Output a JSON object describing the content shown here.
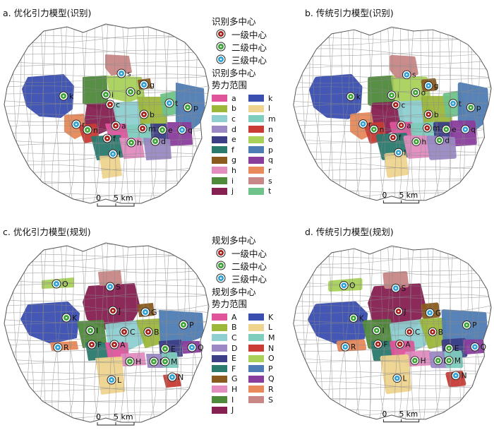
{
  "panels": [
    {
      "title": "a. 优化引力模型(识别)",
      "labels": [
        "k",
        "i",
        "o",
        "s",
        "g",
        "c",
        "b",
        "t",
        "p",
        "r",
        "n",
        "a",
        "m",
        "e",
        "q",
        "f",
        "h",
        "d",
        "l"
      ]
    },
    {
      "title": "b. 传统引力模型(识别)",
      "labels": [
        "k",
        "i",
        "o",
        "s",
        "g",
        "c",
        "b",
        "t",
        "p",
        "r",
        "n",
        "a",
        "m",
        "e",
        "q",
        "f",
        "h",
        "d",
        "l"
      ]
    },
    {
      "title": "c. 优化引力模型(规划)",
      "labels": [
        "O",
        "K",
        "S",
        "J",
        "G",
        "I",
        "C",
        "B",
        "P",
        "R",
        "F",
        "A",
        "E",
        "Q",
        "H",
        "D",
        "M",
        "L",
        "N"
      ]
    },
    {
      "title": "d. 传统引力模型(规划)",
      "labels": [
        "O",
        "K",
        "S",
        "J",
        "G",
        "I",
        "C",
        "B",
        "P",
        "R",
        "F",
        "A",
        "E",
        "Q",
        "H",
        "D",
        "M",
        "L",
        "N"
      ]
    }
  ],
  "scalebar": {
    "zero": "0",
    "five": "5",
    "unit": "km"
  },
  "legend_top": {
    "centers_title": "识别多中心",
    "level1": "一级中心",
    "level2": "二级中心",
    "level3": "三级中心",
    "range_title": "识别多中心\n势力范围",
    "items": [
      {
        "k": "a",
        "c": "#e0549b"
      },
      {
        "k": "k",
        "c": "#3a4eb0"
      },
      {
        "k": "b",
        "c": "#9cb83a"
      },
      {
        "k": "l",
        "c": "#efd48f"
      },
      {
        "k": "c",
        "c": "#8fcfd1"
      },
      {
        "k": "m",
        "c": "#7fcdbd"
      },
      {
        "k": "d",
        "c": "#9b88c4"
      },
      {
        "k": "n",
        "c": "#c93b34"
      },
      {
        "k": "e",
        "c": "#3c3f86"
      },
      {
        "k": "o",
        "c": "#a9d15a"
      },
      {
        "k": "f",
        "c": "#2a7a6e"
      },
      {
        "k": "p",
        "c": "#4e7db5"
      },
      {
        "k": "g",
        "c": "#8a5a1e"
      },
      {
        "k": "q",
        "c": "#8a3e9c"
      },
      {
        "k": "h",
        "c": "#e28cc0"
      },
      {
        "k": "r",
        "c": "#e7895a"
      },
      {
        "k": "i",
        "c": "#4f8a3a"
      },
      {
        "k": "s",
        "c": "#c98686"
      },
      {
        "k": "j",
        "c": "#861f52"
      },
      {
        "k": "t",
        "c": "#6fc38a"
      }
    ]
  },
  "legend_bottom": {
    "centers_title": "规划多中心",
    "level1": "一级中心",
    "level2": "二级中心",
    "level3": "三级中心",
    "range_title": "规划多中心\n势力范围",
    "items": [
      {
        "k": "A",
        "c": "#e0549b"
      },
      {
        "k": "K",
        "c": "#3a4eb0"
      },
      {
        "k": "B",
        "c": "#9cb83a"
      },
      {
        "k": "L",
        "c": "#efd48f"
      },
      {
        "k": "C",
        "c": "#8fcfd1"
      },
      {
        "k": "M",
        "c": "#7fcdbd"
      },
      {
        "k": "D",
        "c": "#9b88c4"
      },
      {
        "k": "N",
        "c": "#c93b34"
      },
      {
        "k": "E",
        "c": "#3c3f86"
      },
      {
        "k": "O",
        "c": "#a9d15a"
      },
      {
        "k": "F",
        "c": "#2a7a6e"
      },
      {
        "k": "P",
        "c": "#4e7db5"
      },
      {
        "k": "G",
        "c": "#8a5a1e"
      },
      {
        "k": "Q",
        "c": "#8a3e9c"
      },
      {
        "k": "H",
        "c": "#e28cc0"
      },
      {
        "k": "R",
        "c": "#e7895a"
      },
      {
        "k": "I",
        "c": "#4f8a3a"
      },
      {
        "k": "S",
        "c": "#c98686"
      },
      {
        "k": "J",
        "c": "#861f52"
      }
    ]
  }
}
